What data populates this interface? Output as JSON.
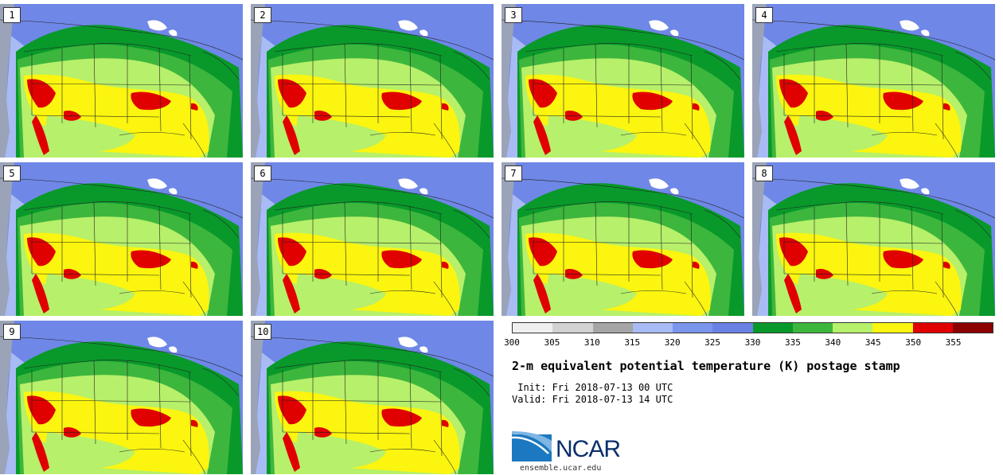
{
  "panels": [
    {
      "label": "1"
    },
    {
      "label": "2"
    },
    {
      "label": "3"
    },
    {
      "label": "4"
    },
    {
      "label": "5"
    },
    {
      "label": "6"
    },
    {
      "label": "7"
    },
    {
      "label": "8"
    },
    {
      "label": "9"
    },
    {
      "label": "10"
    }
  ],
  "colorbar": {
    "ticks": [
      "300",
      "305",
      "310",
      "315",
      "320",
      "325",
      "330",
      "335",
      "340",
      "345",
      "350",
      "355"
    ],
    "colors": [
      "#f0f0f0",
      "#d2d2d2",
      "#a5a5a5",
      "#a8bbf4",
      "#7a95ec",
      "#6a82e4",
      "#08992a",
      "#3db63d",
      "#b7f06a",
      "#fbf50f",
      "#e00000",
      "#8c0000"
    ]
  },
  "title": "2-m equivalent potential temperature (K) postage stamp",
  "init": " Init: Fri 2018-07-13 00 UTC",
  "valid": "Valid: Fri 2018-07-13 14 UTC",
  "logo": {
    "text": "NCAR"
  },
  "site": "ensemble.ucar.edu"
}
